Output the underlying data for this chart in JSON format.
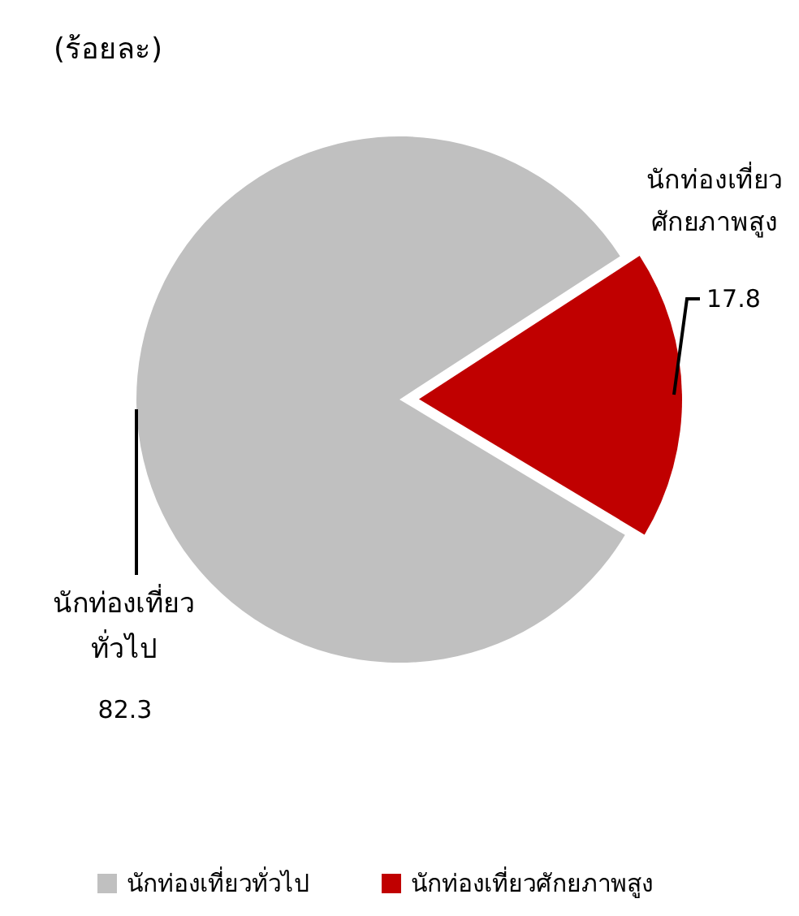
{
  "chart_data": {
    "type": "pie",
    "title": "(ร้อยละ)",
    "categories": [
      "นักท่องเที่ยวทั่วไป",
      "นักท่องเที่ยวศักยภาพสูง"
    ],
    "values": [
      82.3,
      17.8
    ],
    "colors": [
      "#c0c0c0",
      "#c00000"
    ],
    "data_labels": true,
    "legend": "bottom"
  }
}
